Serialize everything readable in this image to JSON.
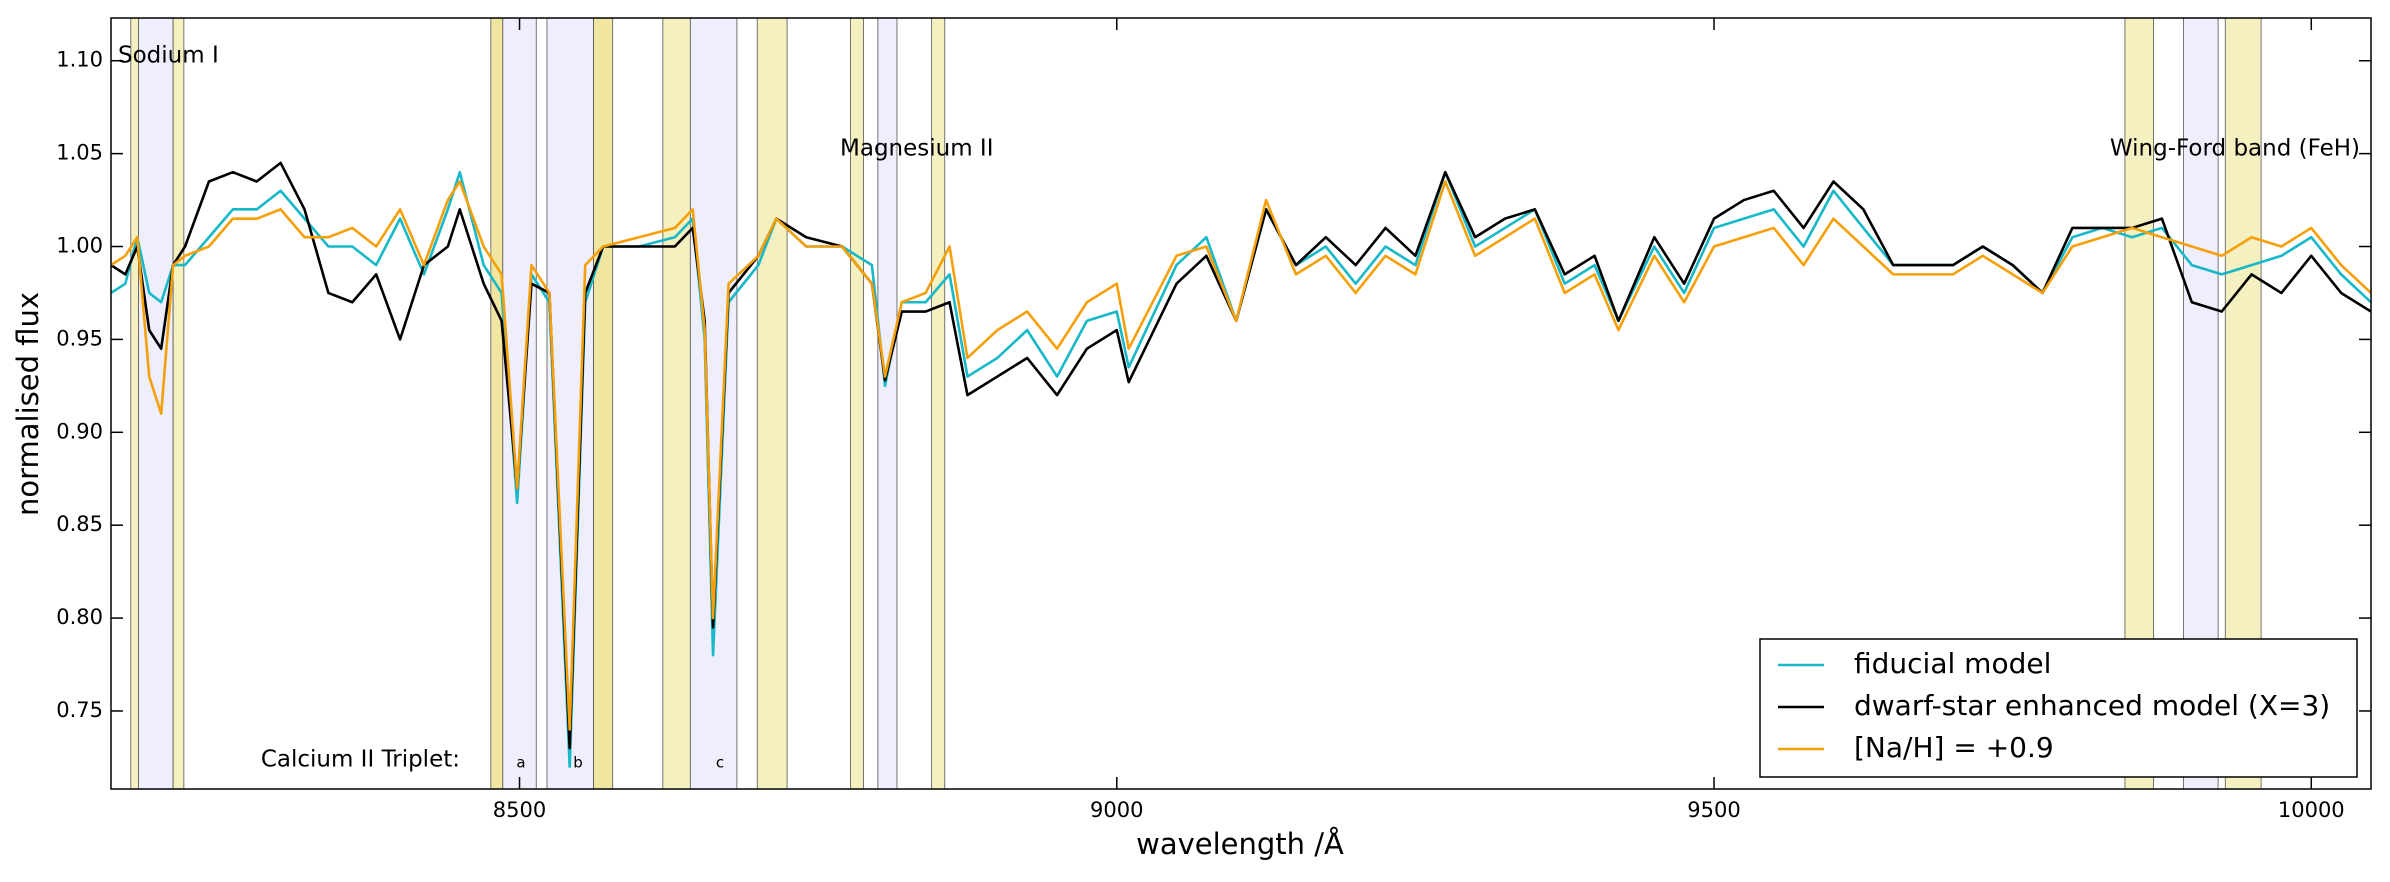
{
  "chart_data": {
    "type": "line",
    "xlabel": "wavelength /Å",
    "ylabel": "normalised flux",
    "annotations": [
      "Sodium I",
      "Magnesium II",
      "Wing-Ford band (FeH)",
      "Calcium II Triplet:",
      "a",
      "b",
      "c"
    ],
    "xlim": [
      8158,
      10050
    ],
    "ylim": [
      0.708,
      1.123
    ],
    "xticks": [
      8500,
      9000,
      9500,
      10000
    ],
    "yticks": [
      0.75,
      {
        "value": 0.8,
        "label": "0.80"
      },
      0.85,
      {
        "value": 0.9,
        "label": "0.90"
      },
      0.95,
      {
        "value": 1.0,
        "label": "1.00"
      },
      1.05,
      {
        "value": 1.1,
        "label": "1.10"
      }
    ],
    "grid": false,
    "legend": "lower right",
    "bands": [
      {
        "range": [
          8174.6,
          8181
        ],
        "color": "#f5f0c0"
      },
      {
        "range": [
          8181,
          8210
        ],
        "color": "#eeeefc"
      },
      {
        "range": [
          8210,
          8219
        ],
        "color": "#f5f0c0"
      },
      {
        "range": [
          8476,
          8486
        ],
        "color": "#f0e6a0"
      },
      {
        "range": [
          8486,
          8514
        ],
        "color": "#eeeefc"
      },
      {
        "range": [
          8523,
          8562
        ],
        "color": "#eeeefc"
      },
      {
        "range": [
          8562,
          8578
        ],
        "color": "#f0e6a0"
      },
      {
        "range": [
          8620,
          8643
        ],
        "color": "#f5f0c0"
      },
      {
        "range": [
          8643,
          8682
        ],
        "color": "#eeeefc"
      },
      {
        "range": [
          8699,
          8724
        ],
        "color": "#f5f0c0"
      },
      {
        "range": [
          8777,
          8788
        ],
        "color": "#f5f0c0"
      },
      {
        "range": [
          8800,
          8816
        ],
        "color": "#eeeefc"
      },
      {
        "range": [
          8845,
          8856
        ],
        "color": "#f5f0c0"
      },
      {
        "range": [
          9844,
          9868
        ],
        "color": "#f5f0c0"
      },
      {
        "range": [
          9893,
          9922
        ],
        "color": "#eeeefc"
      },
      {
        "range": [
          9928,
          9958
        ],
        "color": "#f5f0c0"
      }
    ],
    "x": [
      8158,
      8170,
      8180,
      8190,
      8200,
      8210,
      8220,
      8240,
      8260,
      8280,
      8300,
      8320,
      8340,
      8360,
      8380,
      8400,
      8420,
      8440,
      8450,
      8470,
      8485,
      8498,
      8510,
      8525,
      8542,
      8555,
      8570,
      8600,
      8630,
      8645,
      8655,
      8662,
      8675,
      8700,
      8715,
      8740,
      8770,
      8795,
      8806,
      8820,
      8840,
      8860,
      8875,
      8900,
      8925,
      8950,
      8975,
      9000,
      9010,
      9050,
      9075,
      9100,
      9125,
      9150,
      9175,
      9200,
      9225,
      9250,
      9275,
      9300,
      9325,
      9350,
      9375,
      9400,
      9420,
      9450,
      9475,
      9500,
      9525,
      9550,
      9575,
      9600,
      9625,
      9650,
      9700,
      9725,
      9750,
      9775,
      9800,
      9825,
      9850,
      9875,
      9900,
      9925,
      9950,
      9975,
      10000,
      10025,
      10050
    ],
    "series": [
      {
        "name": "fiducial model",
        "color": "#17b8c8",
        "values": [
          0.975,
          0.98,
          1.005,
          0.975,
          0.97,
          0.99,
          0.99,
          1.005,
          1.02,
          1.02,
          1.03,
          1.015,
          1.0,
          1.0,
          0.99,
          1.015,
          0.985,
          1.02,
          1.04,
          0.99,
          0.975,
          0.862,
          0.985,
          0.97,
          0.72,
          0.97,
          1.0,
          1.0,
          1.005,
          1.015,
          0.95,
          0.78,
          0.97,
          0.99,
          1.015,
          1.0,
          1.0,
          0.99,
          0.925,
          0.97,
          0.97,
          0.985,
          0.93,
          0.94,
          0.955,
          0.93,
          0.96,
          0.965,
          0.935,
          0.99,
          1.005,
          0.96,
          1.02,
          0.99,
          1.0,
          0.98,
          1.0,
          0.99,
          1.04,
          1.0,
          1.01,
          1.02,
          0.98,
          0.99,
          0.96,
          1.0,
          0.975,
          1.01,
          1.015,
          1.02,
          1.0,
          1.03,
          1.01,
          0.99,
          0.99,
          1.0,
          0.99,
          0.975,
          1.005,
          1.01,
          1.005,
          1.01,
          0.99,
          0.985,
          0.99,
          0.995,
          1.005,
          0.985,
          0.97
        ]
      },
      {
        "name": "dwarf-star enhanced model (X=3)",
        "color": "#000000",
        "values": [
          0.99,
          0.985,
          1.0,
          0.955,
          0.945,
          0.99,
          1.0,
          1.035,
          1.04,
          1.035,
          1.045,
          1.02,
          0.975,
          0.97,
          0.985,
          0.95,
          0.99,
          1.0,
          1.02,
          0.98,
          0.96,
          0.87,
          0.98,
          0.975,
          0.73,
          0.975,
          1.0,
          1.0,
          1.0,
          1.01,
          0.96,
          0.795,
          0.975,
          0.995,
          1.015,
          1.005,
          1.0,
          0.98,
          0.928,
          0.965,
          0.965,
          0.97,
          0.92,
          0.93,
          0.94,
          0.92,
          0.945,
          0.955,
          0.927,
          0.98,
          0.995,
          0.96,
          1.02,
          0.99,
          1.005,
          0.99,
          1.01,
          0.995,
          1.04,
          1.005,
          1.015,
          1.02,
          0.985,
          0.995,
          0.96,
          1.005,
          0.98,
          1.015,
          1.025,
          1.03,
          1.01,
          1.035,
          1.02,
          0.99,
          0.99,
          1.0,
          0.99,
          0.975,
          1.01,
          1.01,
          1.01,
          1.015,
          0.97,
          0.965,
          0.985,
          0.975,
          0.995,
          0.975,
          0.965
        ]
      },
      {
        "name": "[Na/H] = +0.9",
        "color": "#f5a00a",
        "values": [
          0.99,
          0.995,
          1.005,
          0.93,
          0.91,
          0.99,
          0.995,
          1.0,
          1.015,
          1.015,
          1.02,
          1.005,
          1.005,
          1.01,
          1.0,
          1.02,
          0.99,
          1.025,
          1.035,
          1.0,
          0.985,
          0.87,
          0.99,
          0.975,
          0.74,
          0.99,
          1.0,
          1.005,
          1.01,
          1.02,
          0.955,
          0.8,
          0.98,
          0.995,
          1.015,
          1.0,
          1.0,
          0.98,
          0.93,
          0.97,
          0.975,
          1.0,
          0.94,
          0.955,
          0.965,
          0.945,
          0.97,
          0.98,
          0.945,
          0.995,
          1.0,
          0.96,
          1.025,
          0.985,
          0.995,
          0.975,
          0.995,
          0.985,
          1.035,
          0.995,
          1.005,
          1.015,
          0.975,
          0.985,
          0.955,
          0.995,
          0.97,
          1.0,
          1.005,
          1.01,
          0.99,
          1.015,
          1.0,
          0.985,
          0.985,
          0.995,
          0.985,
          0.975,
          1.0,
          1.005,
          1.01,
          1.005,
          1.0,
          0.995,
          1.005,
          1.0,
          1.01,
          0.99,
          0.975
        ]
      }
    ]
  }
}
